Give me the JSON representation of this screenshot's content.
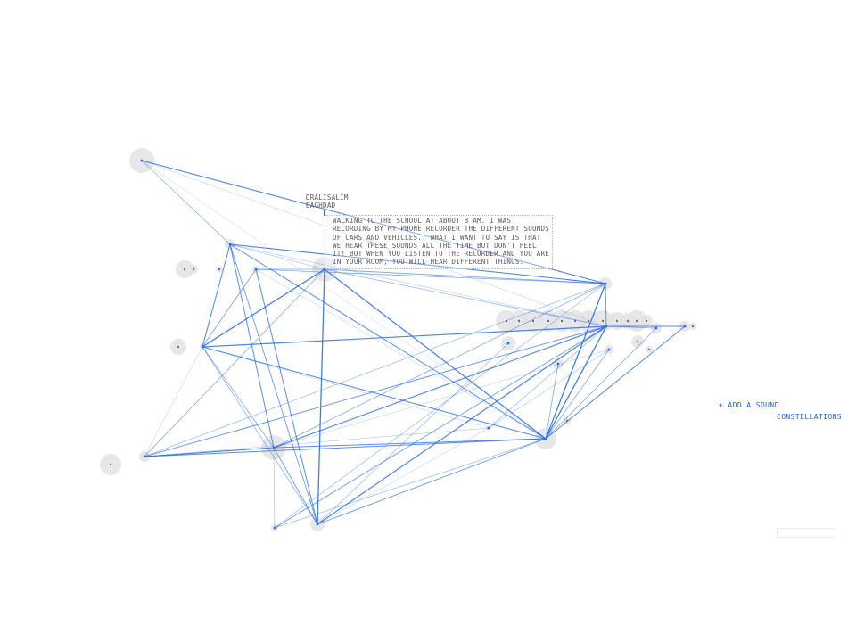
{
  "tooltip": {
    "author": "DRALISALIM",
    "city": "BAGHDAD",
    "story": "WALKING TO THE SCHOOL AT ABOUT 8 AM. I WAS RECORDING BY MY PHONE RECORDER THE DIFFERENT SOUNDS OF CARS AND VEHICLES.. WHAT I WANT TO SAY IS THAT WE HEAR THESE SOUNDS ALL THE TIME BUT DON'T FEEL IT! BUT WHEN YOU LISTEN TO THE RECORDER AND YOU ARE IN YOUR ROOM, YOU WILL HEAR DIFFERENT THINGS."
  },
  "links": {
    "add_sound": "+ ADD A SOUND",
    "constellations": "CONSTELLATIONS"
  },
  "search": {
    "value": ""
  },
  "colors": {
    "edge": "#2f6fe0",
    "halo": "#e3e3e6",
    "dot": "#6f6f78",
    "link": "#2b5fd6"
  }
}
